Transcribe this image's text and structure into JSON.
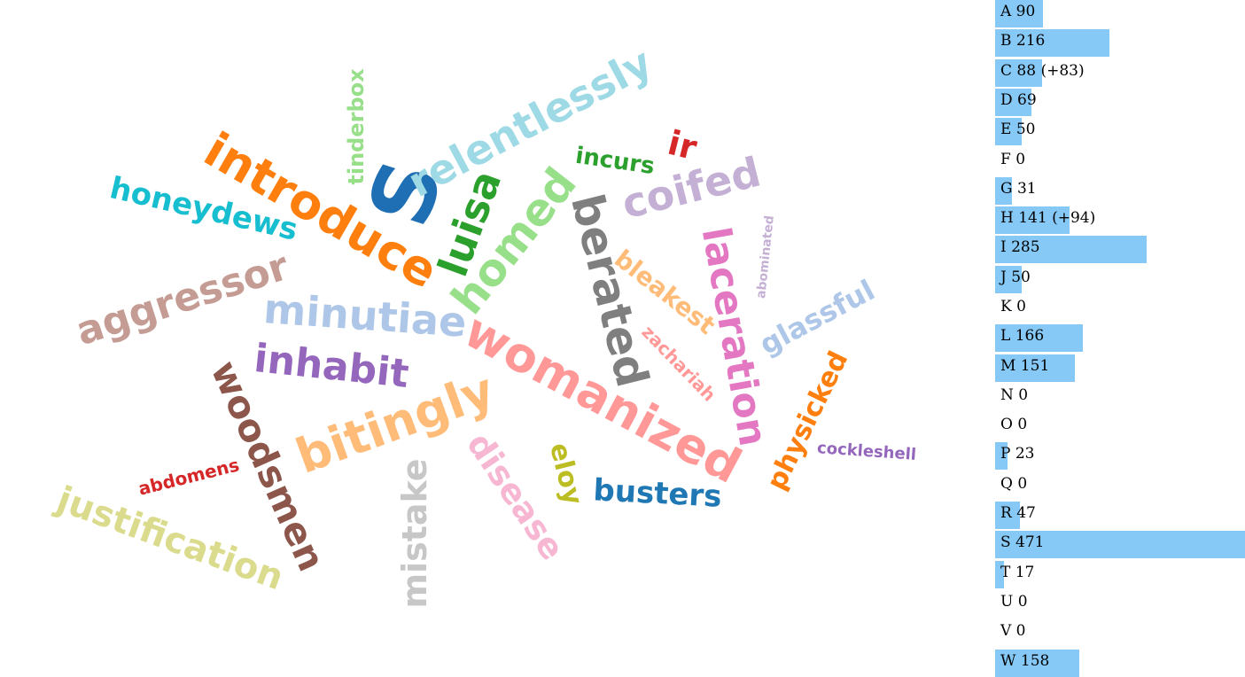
{
  "colors": {
    "bar_fill": "#86c9f7",
    "bar_text": "#000000",
    "background": "#ffffff"
  },
  "chart_data": [
    {
      "type": "word-cloud",
      "words": [
        {
          "text": "S",
          "color": "#1f6fb4"
        },
        {
          "text": "introduce",
          "color": "#ff7f0e"
        },
        {
          "text": "womanized",
          "color": "#ff9896"
        },
        {
          "text": "minutiae",
          "color": "#aec7e8"
        },
        {
          "text": "relentlessly",
          "color": "#9edae5"
        },
        {
          "text": "berated",
          "color": "#7f7f7f"
        },
        {
          "text": "bitingly",
          "color": "#ffbb78"
        },
        {
          "text": "aggressor",
          "color": "#c49c94"
        },
        {
          "text": "homed",
          "color": "#98df8a"
        },
        {
          "text": "laceration",
          "color": "#e377c2"
        },
        {
          "text": "woodsmen",
          "color": "#8c564b"
        },
        {
          "text": "justification",
          "color": "#dbdb8d"
        },
        {
          "text": "inhabit",
          "color": "#9467bd"
        },
        {
          "text": "luisa",
          "color": "#2ca02c"
        },
        {
          "text": "coifed",
          "color": "#c5b0d5"
        },
        {
          "text": "disease",
          "color": "#f7b6d2"
        },
        {
          "text": "mistake",
          "color": "#c7c7c7"
        },
        {
          "text": "honeydews",
          "color": "#17becf"
        },
        {
          "text": "ir",
          "color": "#d62728"
        },
        {
          "text": "glassful",
          "color": "#aec7e8"
        },
        {
          "text": "busters",
          "color": "#1f77b4"
        },
        {
          "text": "physicked",
          "color": "#ff7f0e"
        },
        {
          "text": "bleakest",
          "color": "#ffbb78"
        },
        {
          "text": "eloy",
          "color": "#bcbd22"
        },
        {
          "text": "tinderbox",
          "color": "#98df8a"
        },
        {
          "text": "incurs",
          "color": "#2ca02c"
        },
        {
          "text": "zachariah",
          "color": "#ff9896"
        },
        {
          "text": "abdomens",
          "color": "#d62728"
        },
        {
          "text": "cockleshell",
          "color": "#9467bd"
        },
        {
          "text": "abominated",
          "color": "#c5b0d5"
        }
      ]
    },
    {
      "type": "bar",
      "orientation": "horizontal",
      "categories": [
        "A",
        "B",
        "C",
        "D",
        "E",
        "F",
        "G",
        "H",
        "I",
        "J",
        "K",
        "L",
        "M",
        "N",
        "O",
        "P",
        "Q",
        "R",
        "S",
        "T",
        "U",
        "V",
        "W"
      ],
      "values": [
        90,
        216,
        88,
        69,
        50,
        0,
        31,
        141,
        285,
        50,
        0,
        166,
        151,
        0,
        0,
        23,
        0,
        47,
        471,
        17,
        0,
        0,
        158
      ],
      "labels": [
        "A 90",
        "B 216",
        "C 88 (+83)",
        "D 69",
        "E 50",
        "F 0",
        "G 31",
        "H 141 (+94)",
        "I 285",
        "J 50",
        "K 0",
        "L 166",
        "M 151",
        "N 0",
        "O 0",
        "P 23",
        "Q 0",
        "R 47",
        "S 471",
        "T 17",
        "U 0",
        "V 0",
        "W 158"
      ]
    }
  ]
}
